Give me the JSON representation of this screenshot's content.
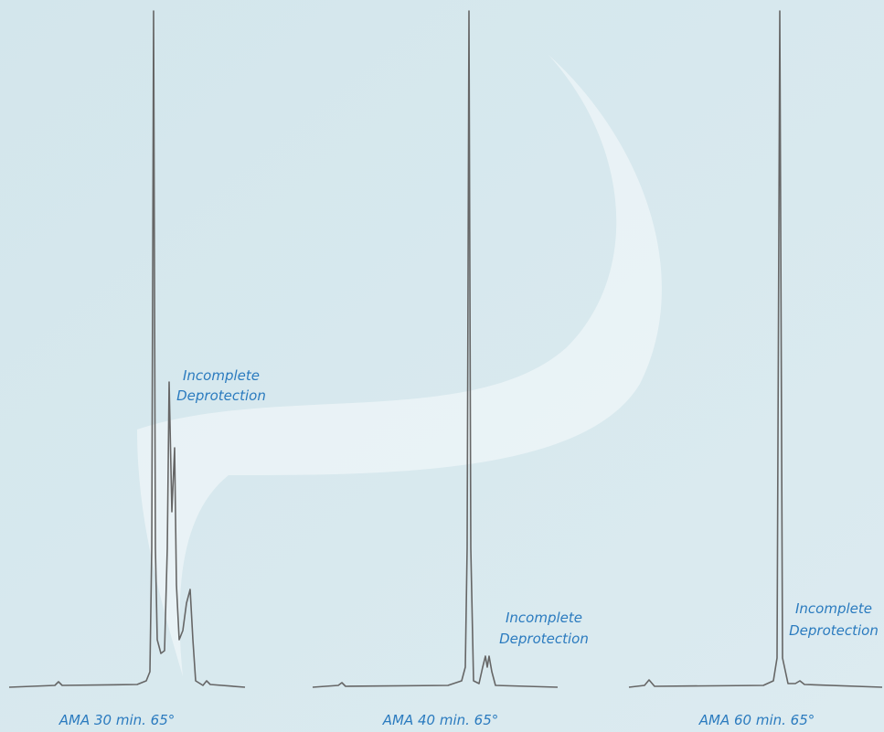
{
  "panels": [
    {
      "annotation": [
        "Incomplete",
        "Deprotection"
      ],
      "caption": "AMA 30 min. 65°"
    },
    {
      "annotation": [
        "Incomplete",
        "Deprotection"
      ],
      "caption": "AMA 40 min. 65°"
    },
    {
      "annotation": [
        "Incomplete",
        "Deprotection"
      ],
      "caption": "AMA 60 min. 65°"
    }
  ]
}
